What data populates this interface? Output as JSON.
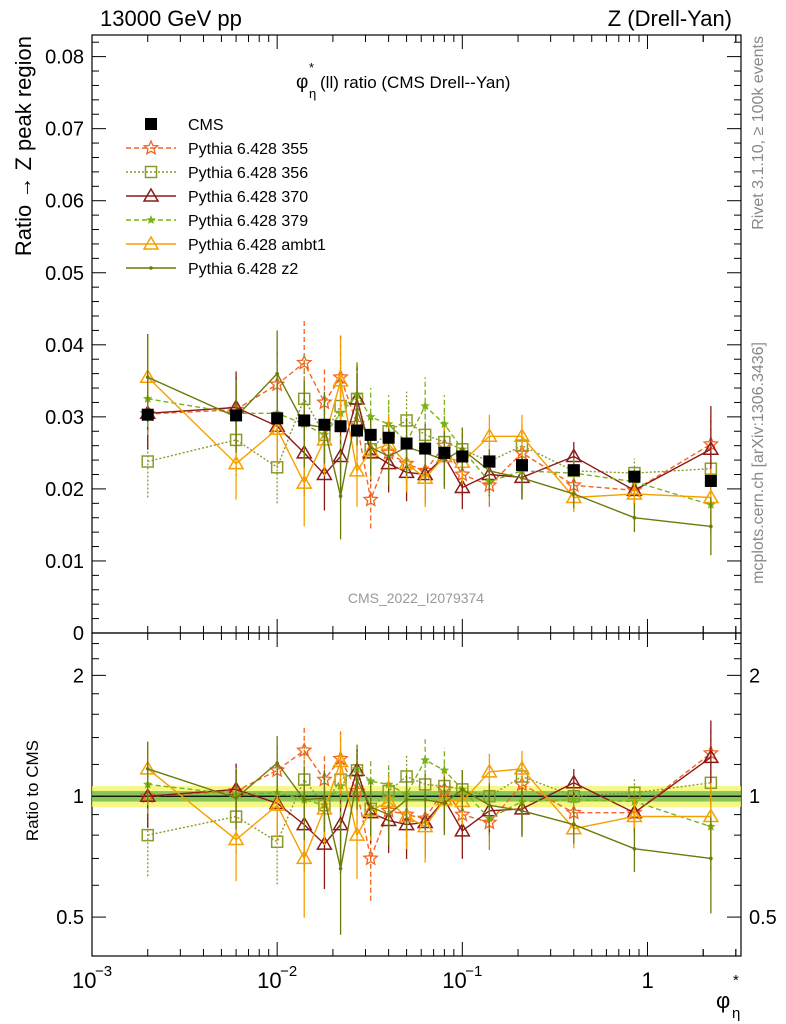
{
  "header": {
    "left": "13000 GeV pp",
    "right": "Z (Drell-Yan)"
  },
  "side_text": {
    "rivet": "Rivet 3.1.10, ≥ 100k events",
    "mcplots": "mcplots.cern.ch [arXiv:1306.3436]"
  },
  "watermark": "CMS_2022_I2079374",
  "colors": {
    "CMS": "#000000",
    "Pythia 6.428 355": "#f26522",
    "Pythia 6.428 356": "#8c9a2a",
    "Pythia 6.428 370": "#8b1a1a",
    "Pythia 6.428 379": "#7ab317",
    "Pythia 6.428 ambt1": "#f5a000",
    "Pythia 6.428 z2": "#6b7a0a",
    "band_inner": "#2e9e2e",
    "band_outer": "#f5f56a"
  },
  "chart_data": [
    {
      "type": "line",
      "title": "φ*η(ll) ratio (CMS Drell--Yan)",
      "title_main": "φ",
      "title_sup": "*",
      "title_sub": "η",
      "title_rest": "(ll) ratio (CMS Drell--Yan)",
      "ylabel": "Ratio → Z peak region",
      "xscale": "log",
      "xlim": [
        0.001,
        3.2
      ],
      "ylim": [
        0,
        0.083
      ],
      "yticks": [
        "0",
        "0.01",
        "0.02",
        "0.03",
        "0.04",
        "0.05",
        "0.06",
        "0.07",
        "0.08"
      ],
      "legend_position": "top-left",
      "x": [
        0.002,
        0.006,
        0.01,
        0.014,
        0.018,
        0.022,
        0.027,
        0.032,
        0.04,
        0.05,
        0.063,
        0.08,
        0.1,
        0.14,
        0.21,
        0.4,
        0.85,
        2.2
      ],
      "series": [
        {
          "name": "CMS",
          "marker": "square-filled",
          "line": "none",
          "values": [
            0.0303,
            0.0302,
            0.0298,
            0.0295,
            0.0289,
            0.0287,
            0.0281,
            0.0275,
            0.0271,
            0.0263,
            0.0256,
            0.025,
            0.0245,
            0.0238,
            0.0233,
            0.0226,
            0.0217,
            0.0211
          ],
          "errors": [
            0.0005,
            0.0005,
            0.0004,
            0.0004,
            0.0004,
            0.0004,
            0.0004,
            0.0004,
            0.0004,
            0.0004,
            0.0004,
            0.0004,
            0.0004,
            0.0004,
            0.0004,
            0.0004,
            0.0005,
            0.0007
          ]
        },
        {
          "name": "Pythia 6.428 355",
          "marker": "star-open",
          "line": "dashed",
          "values": [
            0.0304,
            0.031,
            0.0345,
            0.0375,
            0.032,
            0.0355,
            0.029,
            0.0185,
            0.025,
            0.0235,
            0.0225,
            0.026,
            0.022,
            0.0205,
            0.025,
            0.0205,
            0.0198,
            0.0262
          ],
          "errors": [
            0.005,
            0.005,
            0.005,
            0.006,
            0.005,
            0.006,
            0.005,
            0.004,
            0.004,
            0.004,
            0.004,
            0.004,
            0.003,
            0.003,
            0.003,
            0.002,
            0.002,
            0.004
          ]
        },
        {
          "name": "Pythia 6.428 356",
          "marker": "square-open",
          "line": "dotted",
          "values": [
            0.0238,
            0.0268,
            0.023,
            0.0325,
            0.0275,
            0.0315,
            0.0325,
            0.0255,
            0.028,
            0.0295,
            0.0275,
            0.0265,
            0.0255,
            0.0238,
            0.026,
            0.0225,
            0.0222,
            0.0228
          ],
          "errors": [
            0.005,
            0.005,
            0.005,
            0.006,
            0.005,
            0.006,
            0.005,
            0.004,
            0.004,
            0.004,
            0.004,
            0.004,
            0.003,
            0.003,
            0.003,
            0.002,
            0.002,
            0.004
          ]
        },
        {
          "name": "Pythia 6.428 370",
          "marker": "triangle-open",
          "line": "solid",
          "values": [
            0.0305,
            0.0313,
            0.0287,
            0.025,
            0.022,
            0.0245,
            0.0325,
            0.025,
            0.0235,
            0.0223,
            0.022,
            0.0245,
            0.0202,
            0.022,
            0.0216,
            0.0245,
            0.0198,
            0.0255
          ],
          "errors": [
            0.005,
            0.005,
            0.005,
            0.006,
            0.005,
            0.006,
            0.005,
            0.004,
            0.004,
            0.004,
            0.004,
            0.004,
            0.003,
            0.003,
            0.003,
            0.002,
            0.002,
            0.006
          ]
        },
        {
          "name": "Pythia 6.428 379",
          "marker": "star-filled",
          "line": "dashed",
          "values": [
            0.0325,
            0.0305,
            0.0305,
            0.029,
            0.0275,
            0.0305,
            0.033,
            0.03,
            0.029,
            0.0265,
            0.0315,
            0.029,
            0.0255,
            0.021,
            0.0225,
            0.0222,
            0.021,
            0.0178
          ],
          "errors": [
            0.005,
            0.005,
            0.005,
            0.006,
            0.005,
            0.006,
            0.005,
            0.004,
            0.004,
            0.004,
            0.004,
            0.004,
            0.003,
            0.003,
            0.003,
            0.002,
            0.002,
            0.004
          ]
        },
        {
          "name": "Pythia 6.428 ambt1",
          "marker": "triangle-open",
          "line": "solid",
          "values": [
            0.0355,
            0.0235,
            0.0283,
            0.0208,
            0.0268,
            0.035,
            0.0225,
            0.0253,
            0.0262,
            0.0235,
            0.0215,
            0.0245,
            0.0237,
            0.0273,
            0.0273,
            0.0188,
            0.0193,
            0.0188
          ],
          "errors": [
            0.006,
            0.005,
            0.005,
            0.006,
            0.005,
            0.006,
            0.005,
            0.004,
            0.004,
            0.004,
            0.004,
            0.004,
            0.003,
            0.003,
            0.003,
            0.002,
            0.002,
            0.004
          ]
        },
        {
          "name": "Pythia 6.428 z2",
          "marker": "dot",
          "line": "solid",
          "values": [
            0.0355,
            0.03,
            0.036,
            0.029,
            0.0285,
            0.019,
            0.031,
            0.0258,
            0.0245,
            0.0258,
            0.025,
            0.024,
            0.0255,
            0.0225,
            0.0215,
            0.0193,
            0.016,
            0.0148
          ],
          "errors": [
            0.006,
            0.005,
            0.006,
            0.006,
            0.005,
            0.006,
            0.005,
            0.004,
            0.004,
            0.004,
            0.004,
            0.004,
            0.003,
            0.003,
            0.003,
            0.002,
            0.002,
            0.004
          ]
        }
      ]
    },
    {
      "type": "line",
      "ylabel": "Ratio to CMS",
      "xlabel": "φ*η",
      "xscale": "log",
      "yscale": "log",
      "xlim": [
        0.001,
        3.2
      ],
      "ylim": [
        0.4,
        2.55
      ],
      "yticks": [
        "0.5",
        "1",
        "2"
      ],
      "xticks": [
        "10",
        "10",
        "10",
        "1"
      ],
      "xtick_exponents": [
        "−3",
        "−2",
        "−1",
        ""
      ],
      "reference_band": {
        "inner": [
          0.97,
          1.03
        ],
        "outer": [
          0.94,
          1.06
        ]
      },
      "x": [
        0.002,
        0.006,
        0.01,
        0.014,
        0.018,
        0.022,
        0.027,
        0.032,
        0.04,
        0.05,
        0.063,
        0.08,
        0.1,
        0.14,
        0.21,
        0.4,
        0.85,
        2.2
      ],
      "series": [
        {
          "name": "Pythia 6.428 355",
          "values": [
            1.0,
            1.03,
            1.16,
            1.3,
            1.1,
            1.24,
            1.03,
            0.7,
            0.92,
            0.9,
            0.88,
            1.04,
            0.9,
            0.86,
            1.07,
            0.91,
            0.91,
            1.28
          ]
        },
        {
          "name": "Pythia 6.428 356",
          "values": [
            0.8,
            0.89,
            0.77,
            1.1,
            0.95,
            1.1,
            1.16,
            0.93,
            1.03,
            1.12,
            1.07,
            1.06,
            1.04,
            1.0,
            1.12,
            1.0,
            1.02,
            1.08
          ]
        },
        {
          "name": "Pythia 6.428 370",
          "values": [
            1.0,
            1.04,
            0.96,
            0.85,
            0.76,
            0.85,
            1.16,
            0.91,
            0.87,
            0.85,
            0.86,
            0.98,
            0.82,
            0.92,
            0.93,
            1.08,
            0.91,
            1.25
          ]
        },
        {
          "name": "Pythia 6.428 379",
          "values": [
            1.07,
            1.01,
            1.02,
            0.98,
            0.95,
            1.06,
            1.17,
            1.09,
            1.07,
            1.01,
            1.23,
            1.16,
            1.04,
            0.88,
            0.97,
            0.98,
            0.97,
            0.84
          ]
        },
        {
          "name": "Pythia 6.428 ambt1",
          "values": [
            1.17,
            0.78,
            0.95,
            0.7,
            0.93,
            1.22,
            0.8,
            0.92,
            0.97,
            0.89,
            0.84,
            0.98,
            0.97,
            1.15,
            1.17,
            0.83,
            0.89,
            0.89
          ]
        },
        {
          "name": "Pythia 6.428 z2",
          "values": [
            1.17,
            0.99,
            1.21,
            0.98,
            0.99,
            0.66,
            1.1,
            0.94,
            0.9,
            0.98,
            0.98,
            0.96,
            1.04,
            0.95,
            0.92,
            0.85,
            0.74,
            0.7
          ]
        }
      ]
    }
  ]
}
